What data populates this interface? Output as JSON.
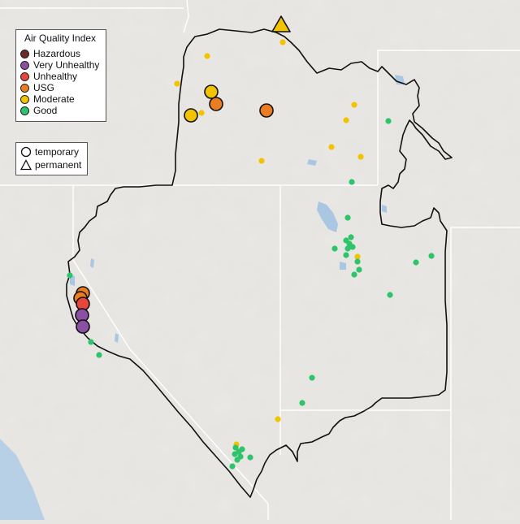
{
  "legend": {
    "title": "Air Quality Index",
    "categories": [
      {
        "label": "Hazardous",
        "color": "#6e2a2a"
      },
      {
        "label": "Very Unhealthy",
        "color": "#8b4fa3"
      },
      {
        "label": "Unhealthy",
        "color": "#e6473a"
      },
      {
        "label": "USG",
        "color": "#ea7d22"
      },
      {
        "label": "Moderate",
        "color": "#f2c300"
      },
      {
        "label": "Good",
        "color": "#2ec46a"
      }
    ],
    "monitor_types": [
      {
        "label": "temporary",
        "shape": "circle-icon"
      },
      {
        "label": "permanent",
        "shape": "triangle-icon"
      }
    ]
  },
  "map_colors": {
    "terrain": "#e7e5e2",
    "boundary": "#111111",
    "state_lines": "#ffffff",
    "water": "#a9c6e3",
    "ocean": "#b8d0e6"
  }
}
